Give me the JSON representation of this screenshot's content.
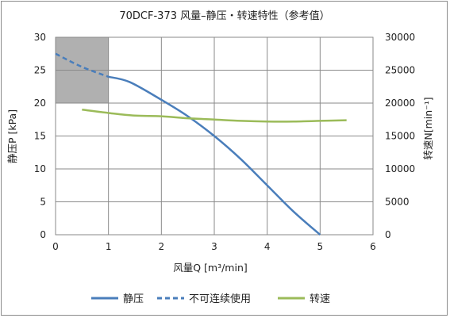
{
  "chart_data": {
    "type": "line",
    "title": "70DCF-373 风量–静压・转速特性（参考值）",
    "xlabel": "风量Q [m³/min]",
    "ylabel": "静压P [kPa]",
    "y2label": "转速N[min⁻¹]",
    "xlim": [
      0,
      6
    ],
    "ylim": [
      0,
      30
    ],
    "y2lim": [
      0,
      30000
    ],
    "x_ticks": [
      "0",
      "1",
      "2",
      "3",
      "4",
      "5",
      "6"
    ],
    "y_ticks": [
      "0",
      "5",
      "10",
      "15",
      "20",
      "25",
      "30"
    ],
    "y2_ticks": [
      "0",
      "5000",
      "10000",
      "15000",
      "20000",
      "25000",
      "30000"
    ],
    "grid": true,
    "legend_position": "bottom",
    "shaded_region": {
      "x": [
        0,
        1
      ],
      "y": [
        20,
        30
      ],
      "color": "#b0b0b0"
    },
    "series": [
      {
        "name": "静压",
        "axis": "left",
        "style": "solid",
        "color": "#4a7ebb",
        "x": [
          1.0,
          1.4,
          2.0,
          2.5,
          3.0,
          3.5,
          4.0,
          4.5,
          5.0
        ],
        "y": [
          24.0,
          23.2,
          20.5,
          18.0,
          15.0,
          11.5,
          7.5,
          3.5,
          0.0
        ]
      },
      {
        "name": "不可连续使用",
        "axis": "left",
        "style": "dashed",
        "color": "#4a7ebb",
        "x": [
          0.0,
          0.5,
          1.0
        ],
        "y": [
          27.5,
          25.5,
          24.0
        ]
      },
      {
        "name": "转速",
        "axis": "right",
        "style": "solid",
        "color": "#9bbb59",
        "x": [
          0.5,
          1.0,
          1.5,
          2.0,
          2.5,
          3.0,
          3.5,
          4.0,
          4.5,
          5.0,
          5.5
        ],
        "y": [
          19000,
          18500,
          18100,
          18000,
          17700,
          17500,
          17300,
          17200,
          17200,
          17300,
          17400
        ]
      }
    ]
  }
}
